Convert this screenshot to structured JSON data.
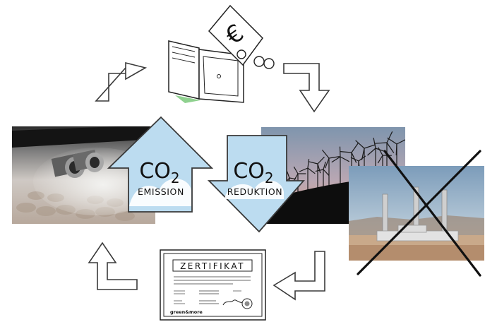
{
  "colors": {
    "arrow_fill": "#bcdcf0",
    "arrow_stroke": "#3a3a3a",
    "outline": "#222222",
    "sky_day": "#8fb0c9",
    "sunset_top": "#7f95ad",
    "sunset_bottom": "#e7a58a",
    "hill": "#0d0d0d",
    "desert": "#c9a98a",
    "wallet_green": "#8fd18f"
  },
  "icons": {
    "cycle_arrows": [
      "cycle-arrow-up-right-icon",
      "cycle-arrow-right-down-icon",
      "cycle-arrow-down-left-icon",
      "cycle-arrow-left-up-icon"
    ],
    "wallet": "wallet-icon",
    "banknote": "euro-banknote-icon",
    "coins": "coins-icon"
  },
  "banknote": {
    "symbol": "€"
  },
  "co2_emission": {
    "formula": "CO",
    "subscript": "2",
    "label": "EMISSION"
  },
  "co2_reduction": {
    "formula": "CO",
    "subscript": "2",
    "label": "REDUKTION"
  },
  "certificate": {
    "title": "ZERTIFIKAT",
    "logo_text": "green&more"
  },
  "photos": {
    "exhaust": "car-exhaust-photo",
    "wind": "wind-farm-photo",
    "plant": "power-plant-photo",
    "cross": "cross-out-icon"
  }
}
